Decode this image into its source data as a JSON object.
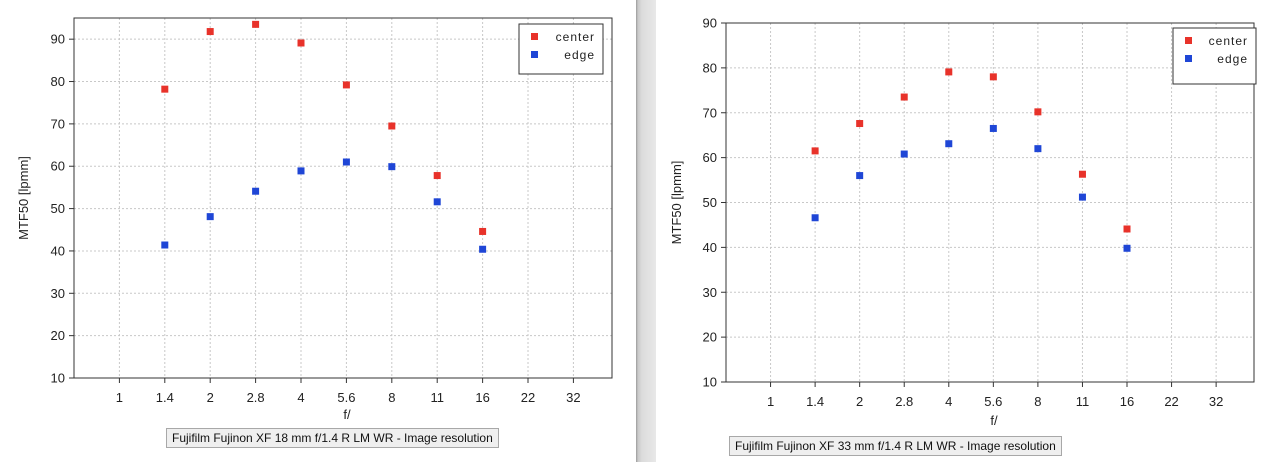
{
  "chart_data": [
    {
      "type": "scatter",
      "title": "",
      "caption": "Fujifilm Fujinon XF 18 mm f/1.4 R LM WR - Image resolution",
      "xlabel": "f/",
      "ylabel": "MTF50 [lpmm]",
      "categories": [
        "1",
        "1.4",
        "2",
        "2.8",
        "4",
        "5.6",
        "8",
        "11",
        "16",
        "22",
        "32"
      ],
      "ylim": [
        10,
        95
      ],
      "yticks": [
        10,
        20,
        30,
        40,
        50,
        60,
        70,
        80,
        90
      ],
      "grid": true,
      "legend_position": "top-right",
      "series": [
        {
          "name": "center",
          "color": "#e8322a",
          "x": [
            "1.4",
            "2",
            "2.8",
            "4",
            "5.6",
            "8",
            "11",
            "16"
          ],
          "values": [
            78.2,
            91.8,
            93.5,
            89.1,
            79.2,
            69.5,
            57.8,
            44.6
          ]
        },
        {
          "name": "edge",
          "color": "#1f46d6",
          "x": [
            "1.4",
            "2",
            "2.8",
            "4",
            "5.6",
            "8",
            "11",
            "16"
          ],
          "values": [
            41.4,
            48.1,
            54.1,
            58.9,
            61.0,
            59.9,
            51.6,
            40.4
          ]
        }
      ]
    },
    {
      "type": "scatter",
      "title": "",
      "caption": "Fujifilm Fujinon XF 33 mm f/1.4 R LM WR - Image resolution",
      "xlabel": "f/",
      "ylabel": "MTF50 [lpmm]",
      "categories": [
        "1",
        "1.4",
        "2",
        "2.8",
        "4",
        "5.6",
        "8",
        "11",
        "16",
        "22",
        "32"
      ],
      "ylim": [
        10,
        90
      ],
      "yticks": [
        10,
        20,
        30,
        40,
        50,
        60,
        70,
        80,
        90
      ],
      "grid": true,
      "legend_position": "top-right",
      "series": [
        {
          "name": "center",
          "color": "#e8322a",
          "x": [
            "1.4",
            "2",
            "2.8",
            "4",
            "5.6",
            "8",
            "11",
            "16"
          ],
          "values": [
            61.5,
            67.6,
            73.5,
            79.1,
            78.0,
            70.2,
            56.3,
            44.1
          ]
        },
        {
          "name": "edge",
          "color": "#1f46d6",
          "x": [
            "1.4",
            "2",
            "2.8",
            "4",
            "5.6",
            "8",
            "11",
            "16"
          ],
          "values": [
            46.6,
            56.0,
            60.8,
            63.1,
            66.5,
            62.0,
            51.2,
            39.8
          ]
        }
      ]
    }
  ]
}
